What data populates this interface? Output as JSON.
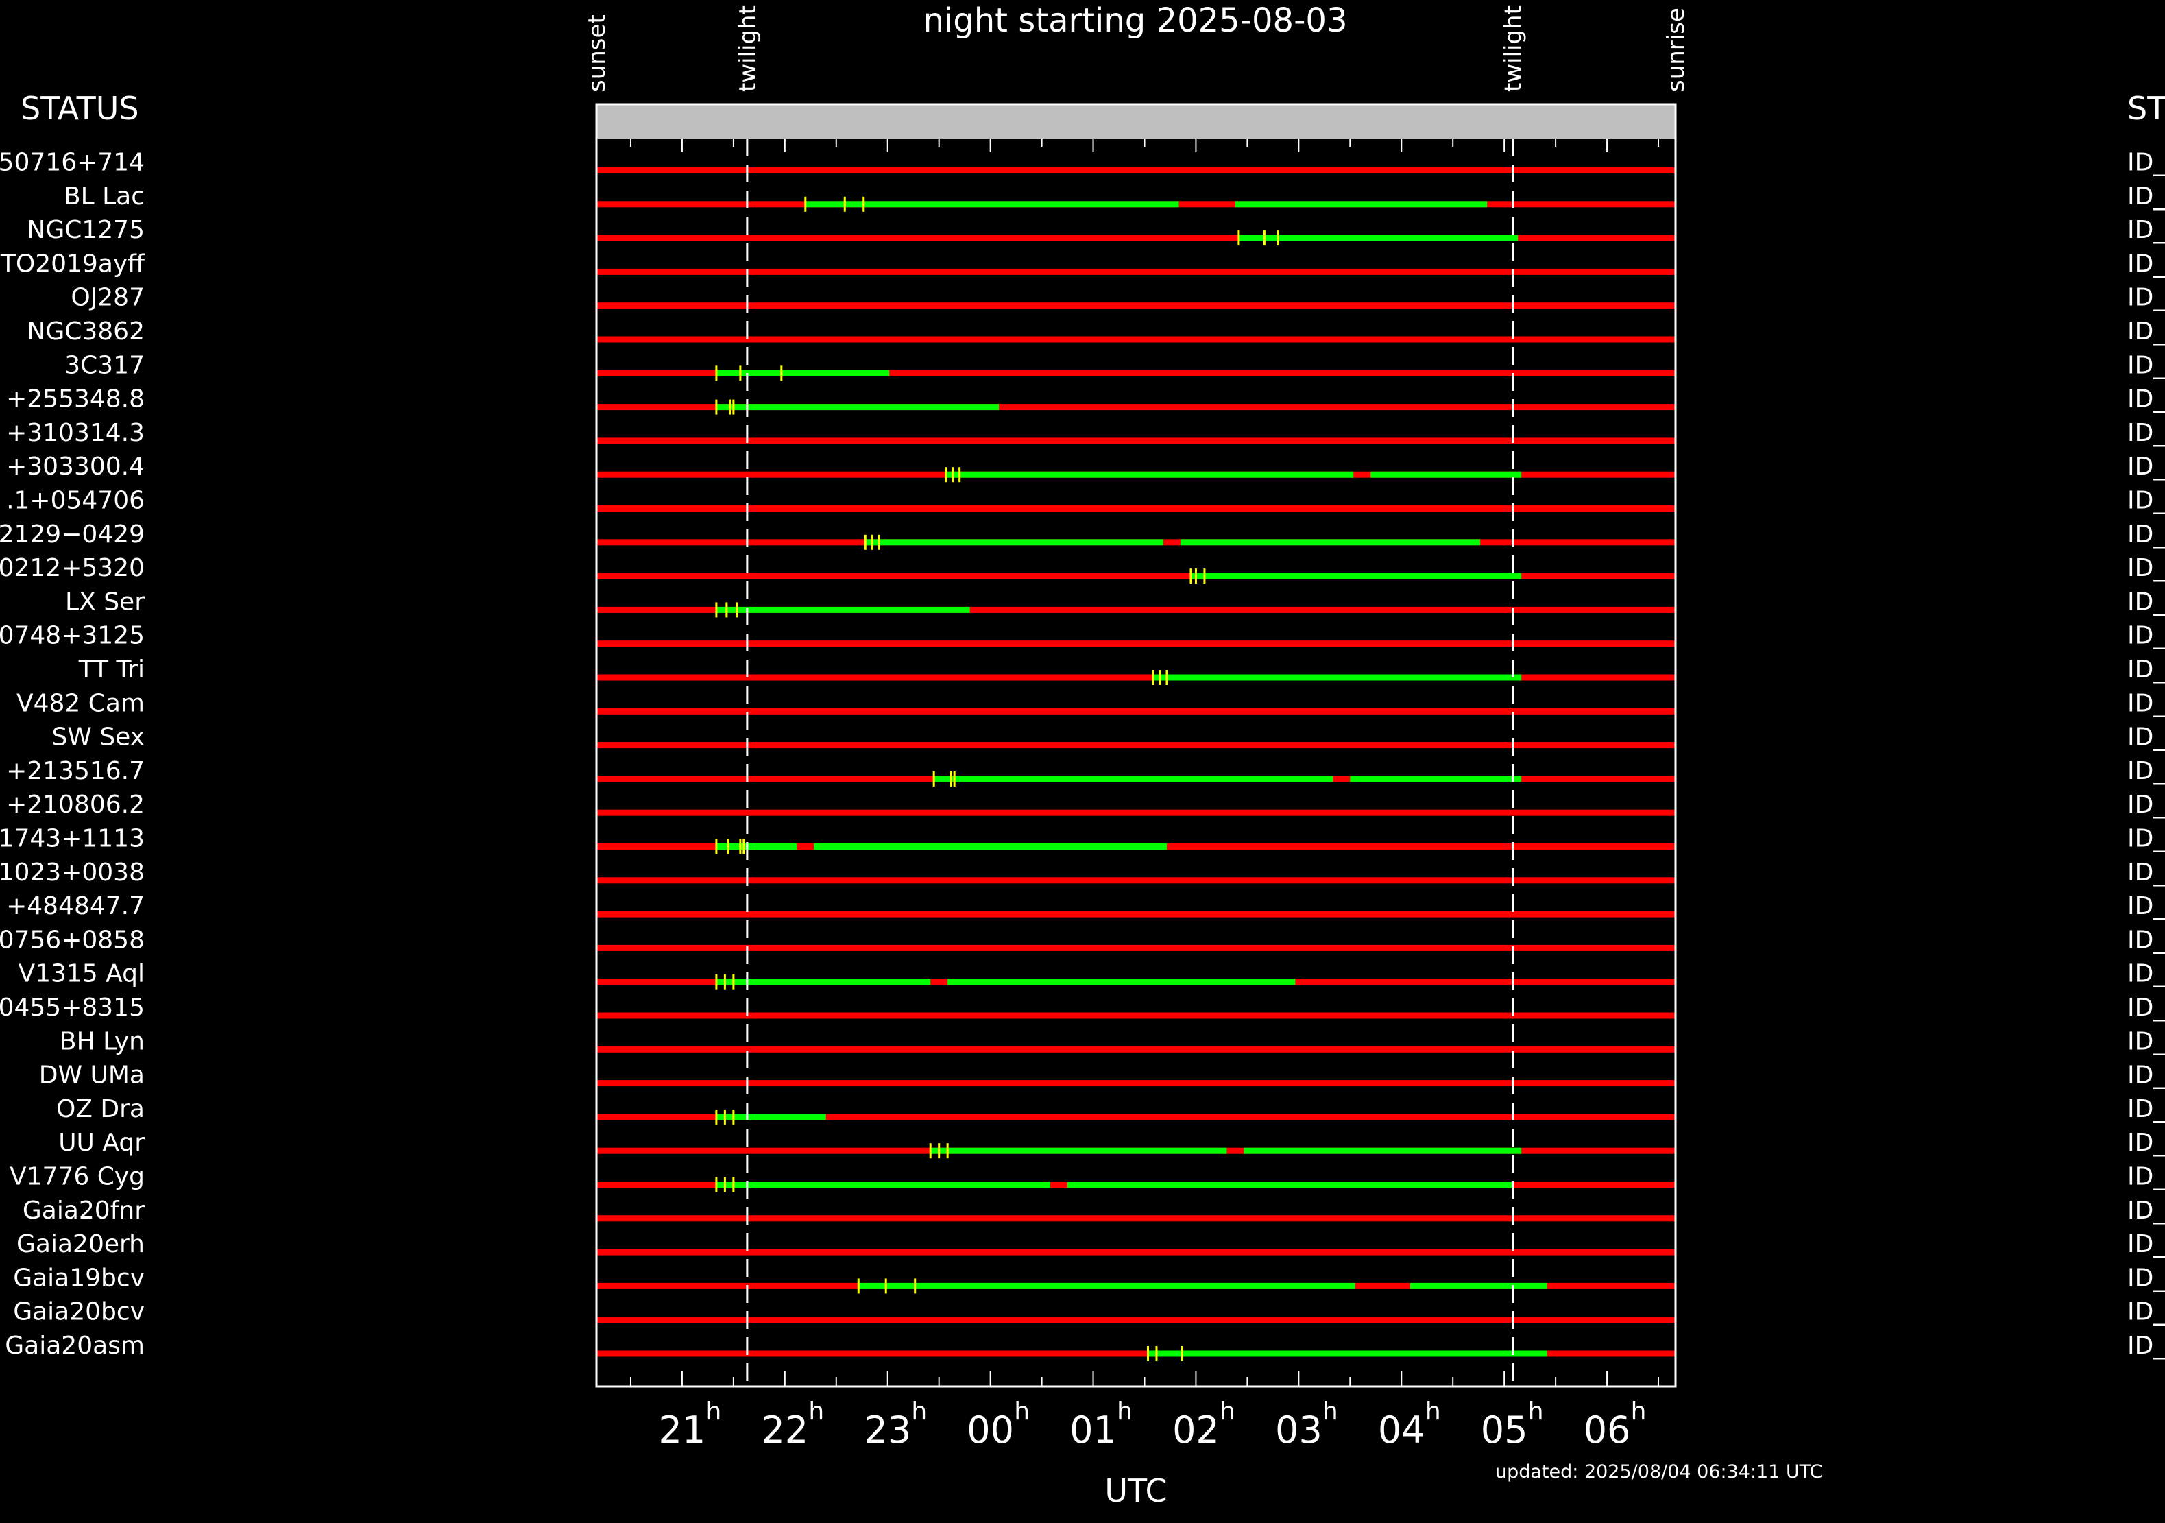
{
  "title": "night starting 2025-08-03",
  "left_header": "STATUS",
  "right_header": "ST",
  "footer": "updated: 2025/08/04 06:34:11 UTC",
  "colors": {
    "background": "#000000",
    "frame": "#ffffff",
    "header_band": "#bebebe",
    "observable": "#00ff00",
    "not_observable": "#ff0000",
    "observation_marker": "#ffff00",
    "twilight_line": "#ffffff"
  },
  "chart_data": {
    "type": "timeline",
    "xlabel": "UTC",
    "x_unit": "hours UTC",
    "x_range": [
      "20:10",
      "06:40"
    ],
    "tick_labels": [
      {
        "hour": "21",
        "sup": "h"
      },
      {
        "hour": "22",
        "sup": "h"
      },
      {
        "hour": "23",
        "sup": "h"
      },
      {
        "hour": "00",
        "sup": "h"
      },
      {
        "hour": "01",
        "sup": "h"
      },
      {
        "hour": "02",
        "sup": "h"
      },
      {
        "hour": "03",
        "sup": "h"
      },
      {
        "hour": "04",
        "sup": "h"
      },
      {
        "hour": "05",
        "sup": "h"
      },
      {
        "hour": "06",
        "sup": "h"
      }
    ],
    "events": [
      {
        "label": "sunset",
        "time": "20:10"
      },
      {
        "label": "twilight",
        "time": "21:38"
      },
      {
        "label": "twilight",
        "time": "05:05"
      },
      {
        "label": "sunrise",
        "time": "06:40"
      }
    ],
    "series_colors": {
      "observable": "#00ff00",
      "not_observable": "#ff0000"
    },
    "rows": [
      {
        "target": "50716+714",
        "status": "ID_",
        "observable": [],
        "observations": []
      },
      {
        "target": "BL Lac",
        "status": "ID_",
        "observable": [
          [
            "22:12",
            "01:50"
          ],
          [
            "02:23",
            "04:50"
          ]
        ],
        "observations": [
          "22:12",
          "22:35",
          "22:46"
        ]
      },
      {
        "target": "NGC1275",
        "status": "ID_",
        "observable": [
          [
            "02:25",
            "05:08"
          ]
        ],
        "observations": [
          "02:25",
          "02:40",
          "02:48"
        ]
      },
      {
        "target": "TO2019ayff",
        "status": "ID_",
        "observable": [],
        "observations": []
      },
      {
        "target": "OJ287",
        "status": "ID_",
        "observable": [],
        "observations": []
      },
      {
        "target": "NGC3862",
        "status": "ID_",
        "observable": [],
        "observations": []
      },
      {
        "target": "3C317",
        "status": "ID_",
        "observable": [
          [
            "21:20",
            "23:01"
          ]
        ],
        "observations": [
          "21:20",
          "21:34",
          "21:58"
        ]
      },
      {
        "target": "+255348.8",
        "status": "ID_",
        "observable": [
          [
            "21:20",
            "00:05"
          ]
        ],
        "observations": [
          "21:20",
          "21:28",
          "21:30"
        ]
      },
      {
        "target": "+310314.3",
        "status": "ID_",
        "observable": [],
        "observations": []
      },
      {
        "target": "+303300.4",
        "status": "ID_",
        "observable": [
          [
            "23:34",
            "03:32"
          ],
          [
            "03:42",
            "05:10"
          ]
        ],
        "observations": [
          "23:34",
          "23:38",
          "23:42"
        ]
      },
      {
        "target": ".1+054706",
        "status": "ID_",
        "observable": [],
        "observations": []
      },
      {
        "target": "2129−0429",
        "status": "ID_",
        "observable": [
          [
            "22:47",
            "01:41"
          ],
          [
            "01:51",
            "04:46"
          ]
        ],
        "observations": [
          "22:47",
          "22:51",
          "22:55"
        ]
      },
      {
        "target": "0212+5320",
        "status": "ID_",
        "observable": [
          [
            "01:57",
            "05:10"
          ]
        ],
        "observations": [
          "01:57",
          "02:00",
          "02:05"
        ]
      },
      {
        "target": "LX Ser",
        "status": "ID_",
        "observable": [
          [
            "21:20",
            "23:48"
          ]
        ],
        "observations": [
          "21:20",
          "21:26",
          "21:32"
        ]
      },
      {
        "target": "0748+3125",
        "status": "ID_",
        "observable": [],
        "observations": []
      },
      {
        "target": "TT Tri",
        "status": "ID_",
        "observable": [
          [
            "01:35",
            "05:10"
          ]
        ],
        "observations": [
          "01:35",
          "01:39",
          "01:43"
        ]
      },
      {
        "target": "V482 Cam",
        "status": "ID_",
        "observable": [],
        "observations": []
      },
      {
        "target": "SW Sex",
        "status": "ID_",
        "observable": [],
        "observations": []
      },
      {
        "target": "+213516.7",
        "status": "ID_",
        "observable": [
          [
            "23:27",
            "03:20"
          ],
          [
            "03:30",
            "05:10"
          ]
        ],
        "observations": [
          "23:27",
          "23:37",
          "23:39"
        ]
      },
      {
        "target": "+210806.2",
        "status": "ID_",
        "observable": [],
        "observations": []
      },
      {
        "target": "1743+1113",
        "status": "ID_",
        "observable": [
          [
            "21:20",
            "22:07"
          ],
          [
            "22:17",
            "01:43"
          ]
        ],
        "observations": [
          "21:20",
          "21:27",
          "21:34",
          "21:36"
        ]
      },
      {
        "target": "1023+0038",
        "status": "ID_",
        "observable": [],
        "observations": []
      },
      {
        "target": "+484847.7",
        "status": "ID_",
        "observable": [],
        "observations": []
      },
      {
        "target": "0756+0858",
        "status": "ID_",
        "observable": [],
        "observations": []
      },
      {
        "target": "V1315 Aql",
        "status": "ID_",
        "observable": [
          [
            "21:20",
            "23:25"
          ],
          [
            "23:35",
            "02:58"
          ]
        ],
        "observations": [
          "21:20",
          "21:25",
          "21:30"
        ]
      },
      {
        "target": "0455+8315",
        "status": "ID_",
        "observable": [],
        "observations": []
      },
      {
        "target": "BH Lyn",
        "status": "ID_",
        "observable": [],
        "observations": []
      },
      {
        "target": "DW UMa",
        "status": "ID_",
        "observable": [],
        "observations": []
      },
      {
        "target": "OZ Dra",
        "status": "ID_",
        "observable": [
          [
            "21:20",
            "22:24"
          ]
        ],
        "observations": [
          "21:20",
          "21:25",
          "21:30"
        ]
      },
      {
        "target": "UU Aqr",
        "status": "ID_",
        "observable": [
          [
            "23:25",
            "02:18"
          ],
          [
            "02:28",
            "05:10"
          ]
        ],
        "observations": [
          "23:25",
          "23:30",
          "23:35"
        ]
      },
      {
        "target": "V1776 Cyg",
        "status": "ID_",
        "observable": [
          [
            "21:20",
            "00:35"
          ],
          [
            "00:45",
            "05:05"
          ]
        ],
        "observations": [
          "21:20",
          "21:25",
          "21:30"
        ]
      },
      {
        "target": "Gaia20fnr",
        "status": "ID_",
        "observable": [],
        "observations": []
      },
      {
        "target": "Gaia20erh",
        "status": "ID_",
        "observable": [],
        "observations": []
      },
      {
        "target": "Gaia19bcv",
        "status": "ID_",
        "observable": [
          [
            "22:43",
            "03:33"
          ],
          [
            "04:05",
            "05:25"
          ]
        ],
        "observations": [
          "22:43",
          "22:59",
          "23:16"
        ]
      },
      {
        "target": "Gaia20bcv",
        "status": "ID_",
        "observable": [],
        "observations": []
      },
      {
        "target": "Gaia20asm",
        "status": "ID_",
        "observable": [
          [
            "01:32",
            "05:25"
          ]
        ],
        "observations": [
          "01:32",
          "01:37",
          "01:52"
        ]
      }
    ]
  }
}
